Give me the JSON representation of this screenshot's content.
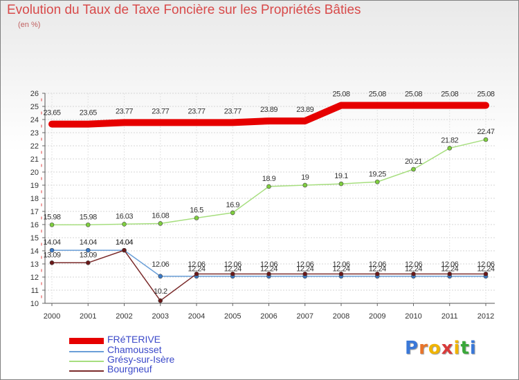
{
  "header": {
    "title": "Evolution du Taux de Taxe Foncière sur les Propriétés Bâties",
    "unit": "(en %)"
  },
  "logo": {
    "text": "Proxiti",
    "colors": [
      "#3a78d8",
      "#e8742a",
      "#f0b400",
      "#d83a3a",
      "#f0b400",
      "#3aa83a",
      "#3a78d8"
    ]
  },
  "chart_data": {
    "type": "line",
    "title": "Evolution du Taux de Taxe Foncière sur les Propriétés Bâties",
    "ylabel": "(en %)",
    "xlabel": "",
    "ylim": [
      10,
      26
    ],
    "y_ticks": [
      "10",
      "11",
      "12",
      "13",
      "14",
      "15",
      "16",
      "17",
      "18",
      "19",
      "20",
      "21",
      "22",
      "23",
      "24",
      "25",
      "26"
    ],
    "categories": [
      "2000",
      "2001",
      "2002",
      "2003",
      "2004",
      "2005",
      "2006",
      "2007",
      "2008",
      "2009",
      "2010",
      "2011",
      "2012"
    ],
    "series": [
      {
        "name": "FRéTERIVE",
        "color": "#e60000",
        "marker_color": "#e60000",
        "values": [
          23.65,
          23.65,
          23.77,
          23.77,
          23.77,
          23.77,
          23.89,
          23.89,
          25.08,
          25.08,
          25.08,
          25.08,
          25.08
        ],
        "labels": [
          "23.65",
          "23.65",
          "23.77",
          "23.77",
          "23.77",
          "23.77",
          "23.89",
          "23.89",
          "25.08",
          "25.08",
          "25.08",
          "25.08",
          "25.08"
        ]
      },
      {
        "name": "Chamousset",
        "color": "#6a9fd8",
        "marker_color": "#3a7ac8",
        "values": [
          14.04,
          14.04,
          14.04,
          12.06,
          12.06,
          12.06,
          12.06,
          12.06,
          12.06,
          12.06,
          12.06,
          12.06,
          12.06
        ],
        "labels": [
          "14.04",
          "14.04",
          "14.04",
          "12.06",
          "12.06",
          "12.06",
          "12.06",
          "12.06",
          "12.06",
          "12.06",
          "12.06",
          "12.06",
          "12.06"
        ]
      },
      {
        "name": "Grésy-sur-Isère",
        "color": "#a6de7e",
        "marker_color": "#7fcf3f",
        "values": [
          15.98,
          15.98,
          16.03,
          16.08,
          16.5,
          16.9,
          18.9,
          19,
          19.1,
          19.25,
          20.21,
          21.82,
          22.47
        ],
        "labels": [
          "15.98",
          "15.98",
          "16.03",
          "16.08",
          "16.5",
          "16.9",
          "18.9",
          "19",
          "19.1",
          "19.25",
          "20.21",
          "21.82",
          "22.47"
        ]
      },
      {
        "name": "Bourgneuf",
        "color": "#7a2a2a",
        "marker_color": "#6a1818",
        "values": [
          13.09,
          13.09,
          14.04,
          10.2,
          12.24,
          12.24,
          12.24,
          12.24,
          12.24,
          12.24,
          12.24,
          12.24,
          12.24
        ],
        "labels": [
          "13.09",
          "13.09",
          "14.04",
          "10.2",
          "12.24",
          "12.24",
          "12.24",
          "12.24",
          "12.24",
          "12.24",
          "12.24",
          "12.24",
          "12.24"
        ]
      }
    ],
    "legend_position": "bottom-left"
  }
}
